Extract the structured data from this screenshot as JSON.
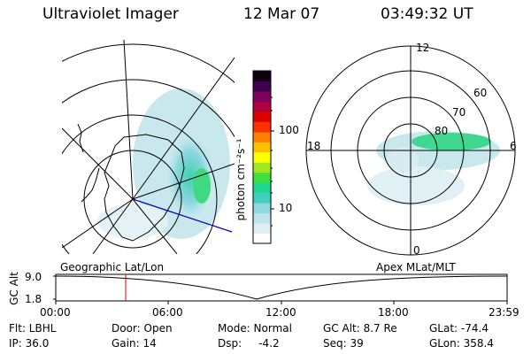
{
  "header": {
    "title": "Ultraviolet Imager",
    "date": "12 Mar 07",
    "time": "03:49:32 UT"
  },
  "colorbar": {
    "unit_label": "photon cm⁻²s⁻¹",
    "tick_100": "100",
    "tick_10": "10",
    "colors": [
      "#ffffff",
      "#dfeff4",
      "#bfe4ec",
      "#8fd8e0",
      "#3fd0c0",
      "#20d890",
      "#40e040",
      "#a0e820",
      "#ffff00",
      "#ffc000",
      "#ff8000",
      "#ff3000",
      "#e00000",
      "#b00040",
      "#800060",
      "#400050",
      "#100010"
    ]
  },
  "polar_plot": {
    "labels": {
      "top": "12",
      "left": "18",
      "right": "6",
      "bottom": "0"
    },
    "lat_labels": [
      "60",
      "70",
      "80"
    ]
  },
  "timeline": {
    "left_label": "Geographic Lat/Lon",
    "right_label": "Apex MLat/MLT",
    "axis_label": "GC Alt",
    "y_max": "9.0",
    "y_min": "1.8",
    "x_ticks": [
      "00:00",
      "06:00",
      "12:00",
      "18:00",
      "23:59"
    ],
    "marker_color": "#e00000"
  },
  "status": {
    "flt": "Flt: LBHL",
    "ip": "IP: 36.0",
    "door": "Door: Open",
    "gain": "Gain: 14",
    "mode": "Mode: Normal",
    "dsp": "Dsp:     -4.2",
    "gcalt": "GC Alt: 8.7 Re",
    "seq": "Seq: 39",
    "glat": "GLat: -74.4",
    "glon": "GLon: 358.4"
  }
}
